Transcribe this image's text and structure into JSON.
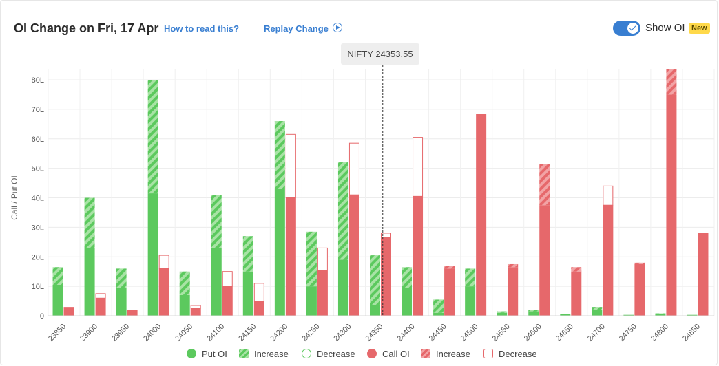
{
  "header": {
    "title": "OI Change on Fri, 17 Apr",
    "how_to_read": "How to read this?",
    "replay": "Replay Change",
    "show_oi": "Show OI",
    "new_badge": "New"
  },
  "spot_label": "NIFTY 24353.55",
  "colors": {
    "put": "#5cc95e",
    "put_light": "#a8e3a5",
    "call": "#e6686b",
    "call_light": "#f2a3a5",
    "accent": "#387ed1"
  },
  "legend": [
    {
      "label": "Put OI",
      "icon": "solid-green-dot"
    },
    {
      "label": "Increase",
      "icon": "striped-green-square"
    },
    {
      "label": "Decrease",
      "icon": "outline-green-circle"
    },
    {
      "label": "Call OI",
      "icon": "solid-red-dot"
    },
    {
      "label": "Increase",
      "icon": "striped-red-square"
    },
    {
      "label": "Decrease",
      "icon": "outline-red-square"
    }
  ],
  "chart_data": {
    "type": "bar",
    "ylabel": "Call / Put OI",
    "ylim": [
      0,
      80
    ],
    "y_ticks": [
      "0",
      "10L",
      "20L",
      "30L",
      "40L",
      "50L",
      "60L",
      "70L",
      "80L"
    ],
    "spot": 24353.55,
    "grid": true,
    "categories": [
      "23850",
      "23900",
      "23950",
      "24000",
      "24050",
      "24100",
      "24150",
      "24200",
      "24250",
      "24300",
      "24350",
      "24400",
      "24450",
      "24500",
      "24550",
      "24600",
      "24650",
      "24700",
      "24750",
      "24800",
      "24850"
    ],
    "series": [
      {
        "name": "Put OI",
        "values": [
          10.5,
          23,
          9.5,
          41.5,
          7,
          23,
          15,
          43,
          10,
          19,
          3.5,
          9.5,
          1,
          10,
          1,
          1.5,
          0.5,
          2,
          0.3,
          0.5,
          0.3
        ]
      },
      {
        "name": "Put OI Increase",
        "values": [
          6,
          17,
          6.5,
          38.5,
          8,
          18,
          12,
          23,
          18.5,
          33,
          17,
          7,
          4.5,
          6,
          0.5,
          0.5,
          0,
          1,
          0,
          0.3,
          0
        ]
      },
      {
        "name": "Put OI Decrease",
        "values": [
          0,
          0,
          0,
          0,
          0,
          0,
          0,
          0,
          0,
          0,
          0,
          0,
          0,
          0,
          0,
          0,
          0,
          0,
          0,
          0,
          0
        ]
      },
      {
        "name": "Call OI",
        "values": [
          3,
          6,
          2,
          16,
          2.5,
          10,
          5,
          40,
          15.5,
          41,
          26.5,
          40.5,
          16,
          68.5,
          16.5,
          37.5,
          15,
          37.5,
          17.5,
          75,
          28
        ]
      },
      {
        "name": "Call OI Increase",
        "values": [
          0,
          0,
          0,
          0,
          0,
          0,
          0,
          0,
          0,
          0,
          0,
          0,
          1,
          0,
          1,
          14,
          1.5,
          0,
          0.5,
          8.5,
          0
        ]
      },
      {
        "name": "Call OI Decrease",
        "values": [
          0,
          1.5,
          0,
          4.5,
          1,
          5,
          6,
          21.5,
          7.5,
          17.5,
          1.5,
          20,
          0,
          0,
          0,
          0,
          0,
          6.5,
          0,
          0,
          0
        ]
      }
    ]
  }
}
